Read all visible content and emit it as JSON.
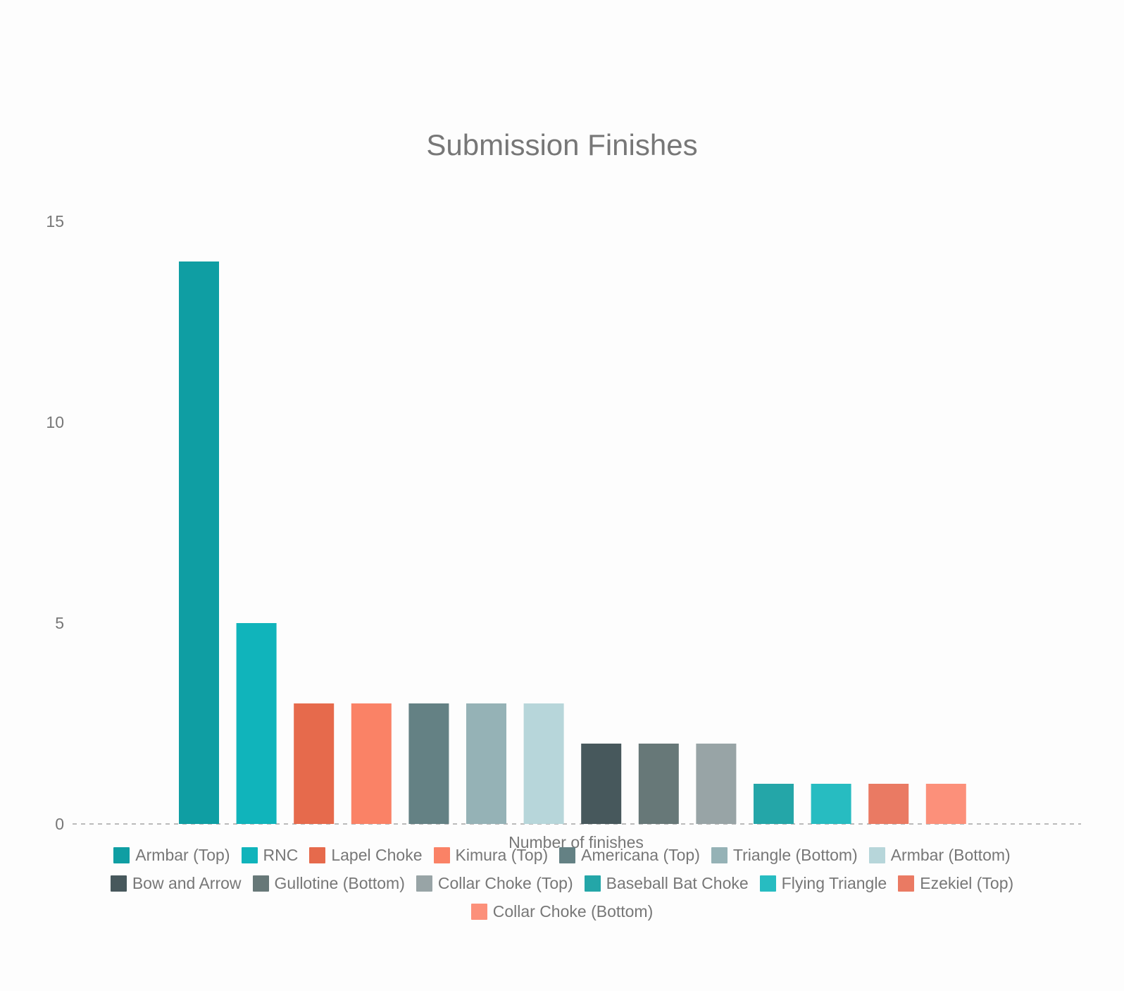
{
  "chart_data": {
    "type": "bar",
    "title": "Submission Finishes",
    "xlabel": "Number of finishes",
    "ylabel": "",
    "ylim": [
      0,
      15
    ],
    "yticks": [
      0,
      5,
      10,
      15
    ],
    "legend_position": "bottom",
    "grid": false,
    "series": [
      {
        "name": "Armbar (Top)",
        "value": 14,
        "color": "#0f9ea3"
      },
      {
        "name": "RNC",
        "value": 5,
        "color": "#10b4bb"
      },
      {
        "name": "Lapel Choke",
        "value": 3,
        "color": "#e66a4c"
      },
      {
        "name": "Kimura (Top)",
        "value": 3,
        "color": "#fa8266"
      },
      {
        "name": "Americana (Top)",
        "value": 3,
        "color": "#648184"
      },
      {
        "name": "Triangle (Bottom)",
        "value": 3,
        "color": "#95b2b6"
      },
      {
        "name": "Armbar (Bottom)",
        "value": 3,
        "color": "#b7d6da"
      },
      {
        "name": "Bow and Arrow",
        "value": 2,
        "color": "#47585c"
      },
      {
        "name": "Gullotine (Bottom)",
        "value": 2,
        "color": "#677878"
      },
      {
        "name": "Collar Choke (Top)",
        "value": 2,
        "color": "#98a4a6"
      },
      {
        "name": "Baseball Bat Choke",
        "value": 1,
        "color": "#24a6a8"
      },
      {
        "name": "Flying Triangle",
        "value": 1,
        "color": "#27bcc1"
      },
      {
        "name": "Ezekiel (Top)",
        "value": 1,
        "color": "#ea7a63"
      },
      {
        "name": "Collar Choke (Bottom)",
        "value": 1,
        "color": "#fc907a"
      }
    ]
  }
}
